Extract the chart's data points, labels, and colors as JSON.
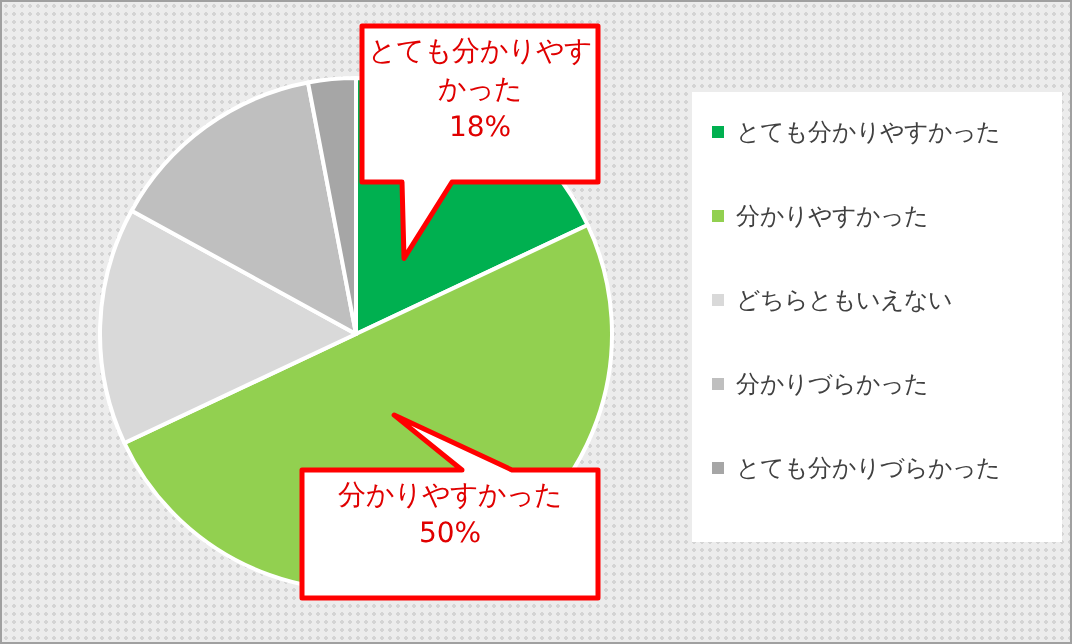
{
  "chart_data": {
    "type": "pie",
    "categories": [
      "とても分かりやすかった",
      "分かりやすかった",
      "どちらともいえない",
      "分かりづらかった",
      "とても分かりづらかった"
    ],
    "values": [
      18,
      50,
      15,
      14,
      3
    ],
    "colors": [
      "#00b050",
      "#92d050",
      "#d9d9d9",
      "#bfbfbf",
      "#a6a6a6"
    ],
    "value_labels": [
      "18%",
      "50%",
      null,
      null,
      null
    ],
    "legend": "right"
  }
}
